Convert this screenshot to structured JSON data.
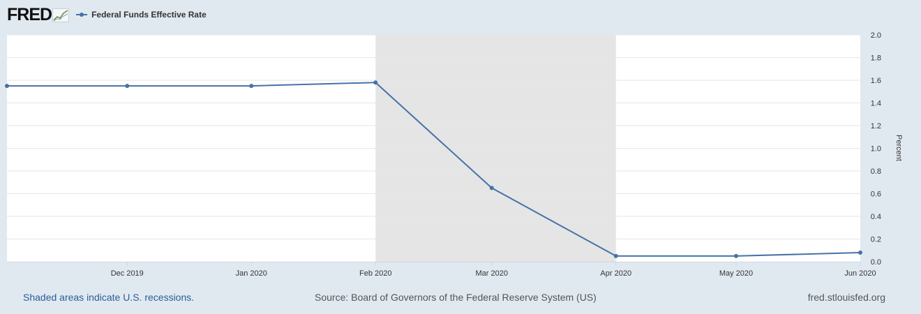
{
  "header": {
    "logo_text": "FRED",
    "logo_icon": "chart-line-icon",
    "legend_label": "Federal Funds Effective Rate"
  },
  "colors": {
    "background": "#e1e9f0",
    "plot_background": "#ffffff",
    "recession_shade": "#e5e5e5",
    "series": "#4572a7",
    "grid": "#e6e6e6"
  },
  "chart_data": {
    "type": "line",
    "ylabel": "Percent",
    "ylim": [
      0,
      2.0
    ],
    "yticks": [
      2.0,
      1.8,
      1.6,
      1.4,
      1.2,
      1.0,
      0.8,
      0.6,
      0.4,
      0.2,
      0.0
    ],
    "ytick_labels": [
      "2.0",
      "1.8",
      "1.6",
      "1.4",
      "1.2",
      "1.0",
      "0.8",
      "0.6",
      "0.4",
      "0.2",
      "0.0"
    ],
    "x_dates": [
      "2019-11-01",
      "2019-12-01",
      "2020-01-01",
      "2020-02-01",
      "2020-03-01",
      "2020-04-01",
      "2020-05-01",
      "2020-06-01"
    ],
    "x_range": [
      "2019-11-01",
      "2020-06-01"
    ],
    "xtick_dates": [
      "2019-12-01",
      "2020-01-01",
      "2020-02-01",
      "2020-03-01",
      "2020-04-01",
      "2020-05-01",
      "2020-06-01"
    ],
    "xtick_labels": [
      "Dec 2019",
      "Jan 2020",
      "Feb 2020",
      "Mar 2020",
      "Apr 2020",
      "May 2020",
      "Jun 2020"
    ],
    "series": [
      {
        "name": "Federal Funds Effective Rate",
        "values": [
          1.55,
          1.55,
          1.55,
          1.58,
          0.65,
          0.05,
          0.05,
          0.08
        ]
      }
    ],
    "recession": {
      "start": "2020-02-01",
      "end": "2020-04-01"
    },
    "grid": true,
    "legend": "top-left"
  },
  "footer": {
    "note": "Shaded areas indicate U.S. recessions.",
    "source": "Source: Board of Governors of the Federal Reserve System (US)",
    "site": "fred.stlouisfed.org"
  }
}
